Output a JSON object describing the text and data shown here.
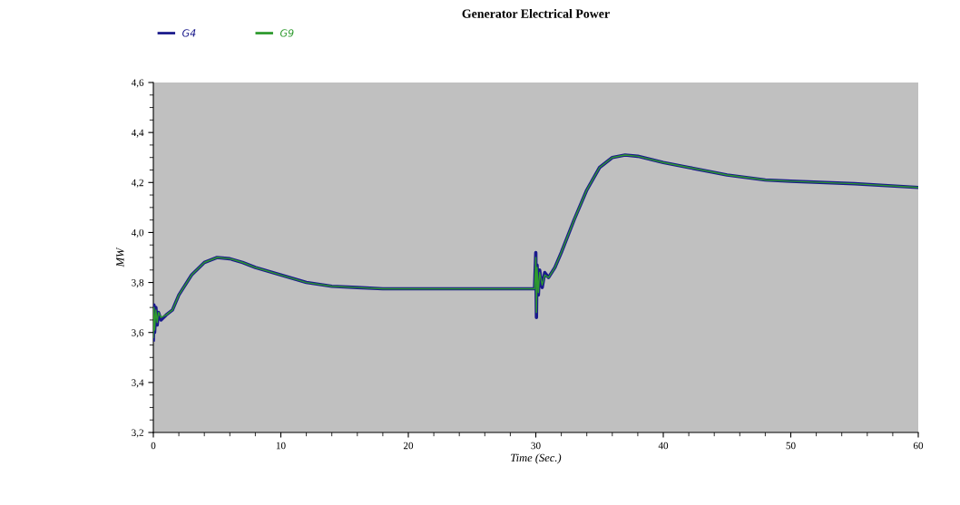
{
  "chart_data": {
    "type": "line",
    "title": "Generator Electrical Power",
    "xlabel": "Time (Sec.)",
    "ylabel": "MW",
    "xlim": [
      0,
      60
    ],
    "xticks": [
      0,
      10,
      20,
      30,
      40,
      50,
      60
    ],
    "ylim": [
      3.2,
      4.6
    ],
    "yticks": [
      {
        "value": 3.2,
        "label": "3,2"
      },
      {
        "value": 3.4,
        "label": "3,4"
      },
      {
        "value": 3.6,
        "label": "3,6"
      },
      {
        "value": 3.8,
        "label": "3,8"
      },
      {
        "value": 4.0,
        "label": "4,0"
      },
      {
        "value": 4.2,
        "label": "4,2"
      },
      {
        "value": 4.4,
        "label": "4,4"
      },
      {
        "value": 4.6,
        "label": "4,6"
      }
    ],
    "x": [
      0,
      0.05,
      0.1,
      0.2,
      0.3,
      0.4,
      0.6,
      1,
      1.5,
      2,
      3,
      4,
      5,
      6,
      7,
      8,
      10,
      12,
      14,
      16,
      18,
      20,
      25,
      29.9,
      30,
      30.05,
      30.1,
      30.2,
      30.3,
      30.5,
      30.7,
      31,
      31.5,
      32,
      33,
      34,
      35,
      36,
      37,
      38,
      40,
      42,
      45,
      48,
      50,
      55,
      60
    ],
    "series": [
      {
        "name": "G4",
        "color": "#1a1a8c",
        "values": [
          3.57,
          3.71,
          3.6,
          3.7,
          3.63,
          3.68,
          3.65,
          3.67,
          3.69,
          3.75,
          3.83,
          3.88,
          3.9,
          3.895,
          3.88,
          3.86,
          3.83,
          3.8,
          3.785,
          3.78,
          3.775,
          3.775,
          3.775,
          3.775,
          3.92,
          3.66,
          3.87,
          3.75,
          3.85,
          3.78,
          3.84,
          3.82,
          3.86,
          3.92,
          4.05,
          4.17,
          4.26,
          4.3,
          4.31,
          4.305,
          4.28,
          4.26,
          4.23,
          4.21,
          4.205,
          4.195,
          4.18
        ]
      },
      {
        "name": "G9",
        "color": "#2e9a2e",
        "values": [
          3.58,
          3.7,
          3.61,
          3.69,
          3.64,
          3.68,
          3.66,
          3.67,
          3.69,
          3.75,
          3.83,
          3.88,
          3.9,
          3.895,
          3.88,
          3.86,
          3.83,
          3.8,
          3.785,
          3.78,
          3.775,
          3.775,
          3.775,
          3.775,
          3.9,
          3.68,
          3.86,
          3.76,
          3.84,
          3.79,
          3.83,
          3.82,
          3.86,
          3.92,
          4.05,
          4.17,
          4.26,
          4.3,
          4.31,
          4.305,
          4.28,
          4.26,
          4.23,
          4.21,
          4.205,
          4.195,
          4.18
        ]
      }
    ],
    "legend": "top left",
    "grid": false,
    "marker": "none",
    "line_style": "solid"
  }
}
